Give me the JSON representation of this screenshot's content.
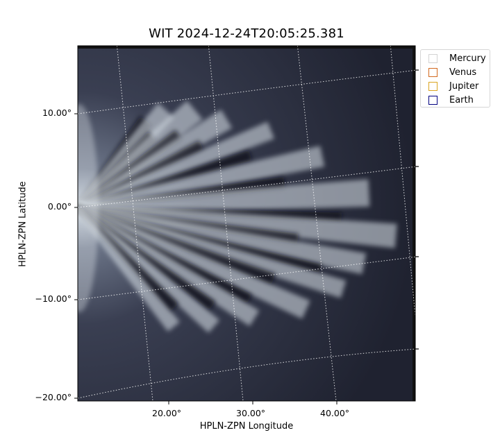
{
  "title": "WIT 2024-12-24T20:05:25.381",
  "xlabel": "HPLN-ZPN Longitude",
  "ylabel": "HPLN-ZPN Latitude",
  "x_ticks": [
    "20.00°",
    "30.00°",
    "40.00°"
  ],
  "y_ticks": [
    "10.00°",
    "0.00°",
    "−10.00°",
    "−20.00°"
  ],
  "legend": [
    {
      "name": "Mercury",
      "color": "#d3d3d3"
    },
    {
      "name": "Venus",
      "color": "#d2691e"
    },
    {
      "name": "Jupiter",
      "color": "#daa520"
    },
    {
      "name": "Earth",
      "color": "#000080"
    }
  ],
  "colors": {
    "background": "#1f2230",
    "streamer": "#e6edf2",
    "grid": "#ffffff"
  }
}
